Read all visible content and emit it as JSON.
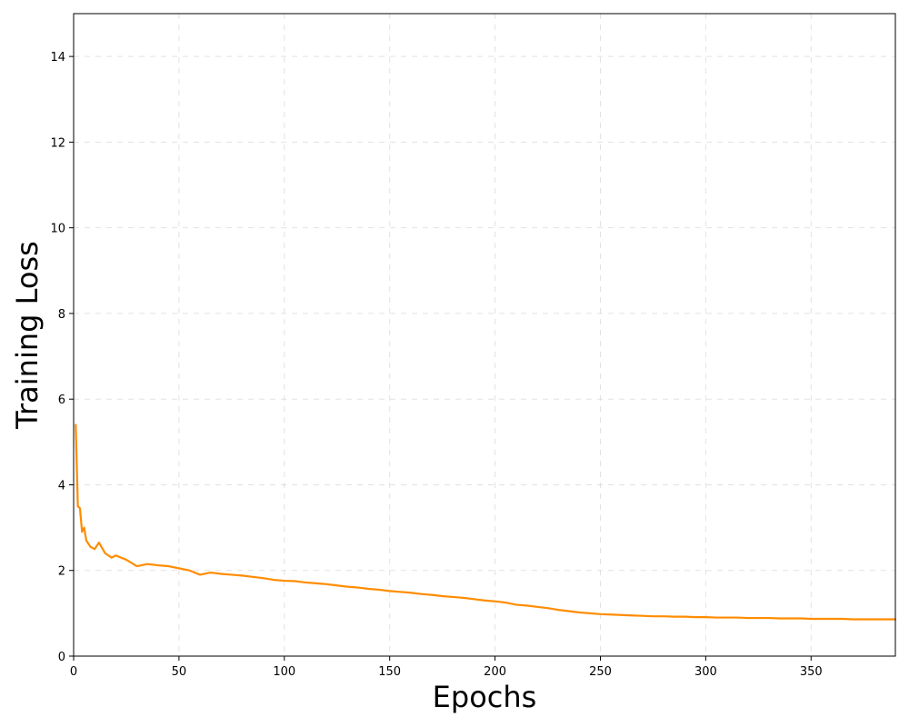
{
  "chart_data": {
    "type": "line",
    "title": "",
    "xlabel": "Epochs",
    "ylabel": "Training Loss",
    "xlim": [
      0,
      390
    ],
    "ylim": [
      0,
      15
    ],
    "x_ticks": [
      0,
      50,
      100,
      150,
      200,
      250,
      300,
      350
    ],
    "y_ticks": [
      0,
      2,
      4,
      6,
      8,
      10,
      12,
      14
    ],
    "grid": true,
    "legend": "none",
    "series": [
      {
        "color": "#ff8c00",
        "x": [
          1,
          2,
          3,
          4,
          5,
          6,
          8,
          10,
          12,
          15,
          18,
          20,
          25,
          30,
          35,
          40,
          45,
          50,
          55,
          60,
          65,
          70,
          75,
          80,
          85,
          90,
          95,
          100,
          105,
          110,
          115,
          120,
          125,
          130,
          135,
          140,
          145,
          150,
          155,
          160,
          165,
          170,
          175,
          180,
          185,
          190,
          195,
          200,
          205,
          210,
          215,
          220,
          225,
          230,
          235,
          240,
          245,
          250,
          255,
          260,
          265,
          270,
          275,
          280,
          285,
          290,
          295,
          300,
          305,
          310,
          315,
          320,
          325,
          330,
          335,
          340,
          345,
          350,
          355,
          360,
          365,
          370,
          375,
          380,
          385,
          390
        ],
        "values": [
          5.4,
          3.5,
          3.45,
          2.9,
          3.0,
          2.7,
          2.55,
          2.5,
          2.65,
          2.4,
          2.3,
          2.35,
          2.25,
          2.1,
          2.15,
          2.12,
          2.1,
          2.05,
          2.0,
          1.9,
          1.95,
          1.92,
          1.9,
          1.88,
          1.85,
          1.82,
          1.78,
          1.76,
          1.75,
          1.72,
          1.7,
          1.68,
          1.65,
          1.62,
          1.6,
          1.57,
          1.55,
          1.52,
          1.5,
          1.48,
          1.45,
          1.43,
          1.4,
          1.38,
          1.36,
          1.33,
          1.3,
          1.28,
          1.25,
          1.2,
          1.18,
          1.15,
          1.12,
          1.08,
          1.05,
          1.02,
          1.0,
          0.98,
          0.97,
          0.96,
          0.95,
          0.94,
          0.93,
          0.93,
          0.92,
          0.92,
          0.91,
          0.91,
          0.9,
          0.9,
          0.9,
          0.89,
          0.89,
          0.89,
          0.88,
          0.88,
          0.88,
          0.87,
          0.87,
          0.87,
          0.87,
          0.86,
          0.86,
          0.86,
          0.86,
          0.86
        ]
      }
    ]
  }
}
